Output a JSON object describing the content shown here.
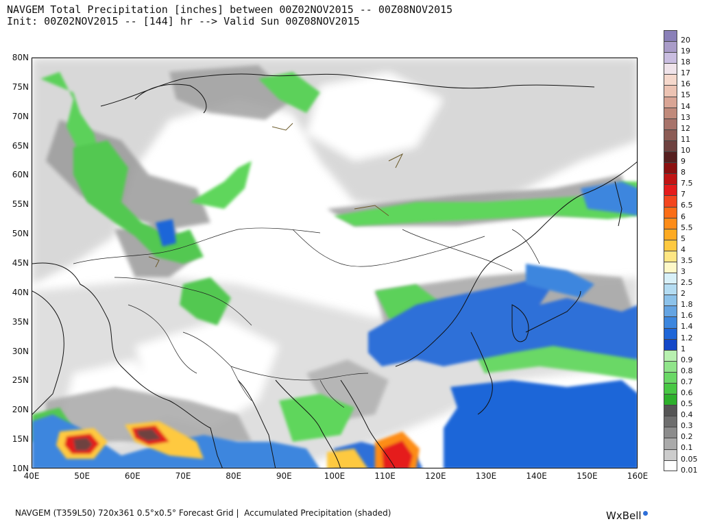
{
  "title_line1": "NAVGEM Total Precipitation [inches] between 00Z02NOV2015 -- 00Z08NOV2015",
  "title_line2": "Init: 00Z02NOV2015 -- [144] hr --> Valid Sun 00Z08NOV2015",
  "lat_labels": [
    "80N",
    "75N",
    "70N",
    "65N",
    "60N",
    "55N",
    "50N",
    "45N",
    "40N",
    "35N",
    "30N",
    "25N",
    "20N",
    "15N",
    "10N"
  ],
  "lon_labels": [
    "40E",
    "50E",
    "60E",
    "70E",
    "80E",
    "90E",
    "100E",
    "110E",
    "120E",
    "130E",
    "140E",
    "150E",
    "160E"
  ],
  "colorbar": [
    {
      "label": "20",
      "color": "#8a80b8"
    },
    {
      "label": "19",
      "color": "#a99cc8"
    },
    {
      "label": "18",
      "color": "#c9bde0"
    },
    {
      "label": "17",
      "color": "#efe3ea"
    },
    {
      "label": "16",
      "color": "#f5d8cc"
    },
    {
      "label": "15",
      "color": "#ecc3b3"
    },
    {
      "label": "14",
      "color": "#d9a595"
    },
    {
      "label": "13",
      "color": "#c08a7b"
    },
    {
      "label": "12",
      "color": "#a7736a"
    },
    {
      "label": "11",
      "color": "#8c5c55"
    },
    {
      "label": "10",
      "color": "#6e4240"
    },
    {
      "label": "9",
      "color": "#561f1f"
    },
    {
      "label": "8",
      "color": "#8b1010"
    },
    {
      "label": "7.5",
      "color": "#c01414"
    },
    {
      "label": "7",
      "color": "#e51c1c"
    },
    {
      "label": "6.5",
      "color": "#f3461e"
    },
    {
      "label": "6",
      "color": "#fb6d16"
    },
    {
      "label": "5.5",
      "color": "#fd8c18"
    },
    {
      "label": "5",
      "color": "#feaa22"
    },
    {
      "label": "4",
      "color": "#fec940"
    },
    {
      "label": "3.5",
      "color": "#fee683"
    },
    {
      "label": "3",
      "color": "#fef8c8"
    },
    {
      "label": "2.5",
      "color": "#d8f0f8"
    },
    {
      "label": "2",
      "color": "#b4dcf2"
    },
    {
      "label": "1.8",
      "color": "#8cc2ea"
    },
    {
      "label": "1.6",
      "color": "#64a4e2"
    },
    {
      "label": "1.4",
      "color": "#3c86de"
    },
    {
      "label": "1.2",
      "color": "#1e66d8"
    },
    {
      "label": "1",
      "color": "#1448c8"
    },
    {
      "label": "0.9",
      "color": "#b8f0b0"
    },
    {
      "label": "0.8",
      "color": "#90e48a"
    },
    {
      "label": "0.7",
      "color": "#6ad866"
    },
    {
      "label": "0.6",
      "color": "#48c844"
    },
    {
      "label": "0.5",
      "color": "#2eb02c"
    },
    {
      "label": "0.4",
      "color": "#555555"
    },
    {
      "label": "0.3",
      "color": "#6e6e6e"
    },
    {
      "label": "0.2",
      "color": "#8c8c8c"
    },
    {
      "label": "0.1",
      "color": "#aaaaaa"
    },
    {
      "label": "0.05",
      "color": "#cccccc"
    },
    {
      "label": "0.01",
      "color": "#ffffff"
    }
  ],
  "footer": "NAVGEM (T359L50) 720x361 0.5°x0.5° Forecast Grid |  Accumulated Precipitation (shaded)",
  "logo": "WxBell"
}
